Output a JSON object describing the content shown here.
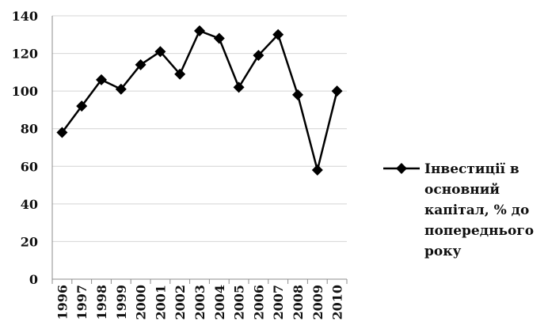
{
  "chart_data": {
    "type": "line",
    "categories": [
      "1996",
      "1997",
      "1998",
      "1999",
      "2000",
      "2001",
      "2002",
      "2003",
      "2004",
      "2005",
      "2006",
      "2007",
      "2008",
      "2009",
      "2010"
    ],
    "series": [
      {
        "name": "Інвестиції в основний капітал, % до попереднього року",
        "values": [
          78,
          92,
          106,
          101,
          114,
          121,
          109,
          132,
          128,
          102,
          119,
          130,
          98,
          58,
          100
        ],
        "color": "#000000",
        "marker": "diamond"
      }
    ],
    "legend_lines": [
      "Інвестиції в",
      "основний",
      "капітал, % до",
      "попереднього",
      "року"
    ],
    "ylim": [
      0,
      140
    ],
    "yticks": [
      0,
      20,
      40,
      60,
      80,
      100,
      120,
      140
    ],
    "grid": true,
    "legend_position": "right"
  }
}
